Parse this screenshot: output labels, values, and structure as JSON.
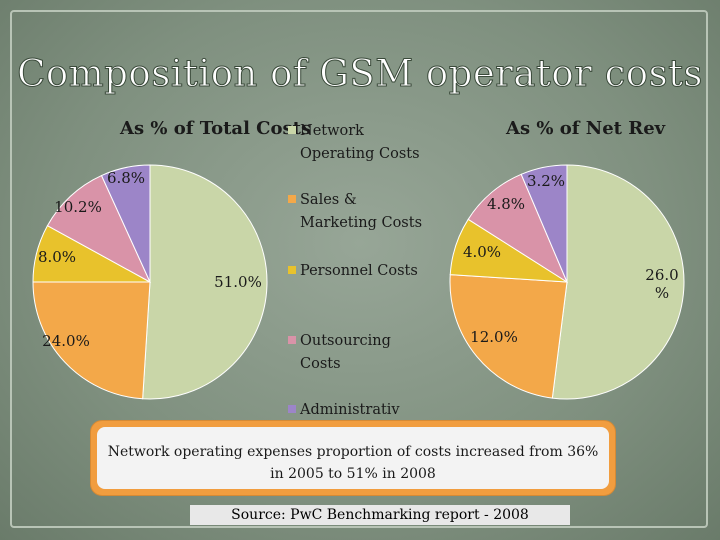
{
  "title": "Composition of GSM operator costs",
  "chart_data": [
    {
      "type": "pie",
      "title": "As % of Total Costs",
      "categories": [
        "Network Operating Costs",
        "Sales & Marketing Costs",
        "Personnel Costs",
        "Outsourcing Costs",
        "Administrative"
      ],
      "values": [
        51.0,
        24.0,
        8.0,
        10.2,
        6.8
      ],
      "labels": [
        "51.0%",
        "24.0%",
        "8.0%",
        "10.2%",
        "6.8%"
      ]
    },
    {
      "type": "pie",
      "title": "As % of Net Rev",
      "categories": [
        "Network Operating Costs",
        "Sales & Marketing Costs",
        "Personnel Costs",
        "Outsourcing Costs",
        "Administrative"
      ],
      "values": [
        26.0,
        12.0,
        4.0,
        4.8,
        3.2
      ],
      "labels": [
        "26.0 %",
        "12.0%",
        "4.0%",
        "4.8%",
        "3.2%"
      ]
    }
  ],
  "legend": [
    {
      "label": "Network Operating Costs",
      "color": "#c9d6a8"
    },
    {
      "label": "Sales & Marketing Costs",
      "color": "#f3a849"
    },
    {
      "label": "Personnel Costs",
      "color": "#e8c22c"
    },
    {
      "label": "Outsourcing Costs",
      "color": "#d993a8"
    },
    {
      "label": "Administrativ",
      "color": "#9c85c8"
    }
  ],
  "callout": "Network operating expenses proportion of costs increased from 36% in 2005 to 51% in  2008",
  "source": "Source: PwC Benchmarking report - 2008",
  "colors": {
    "slice_edge": "#ffffff",
    "callout_border": "#f19d3f"
  }
}
